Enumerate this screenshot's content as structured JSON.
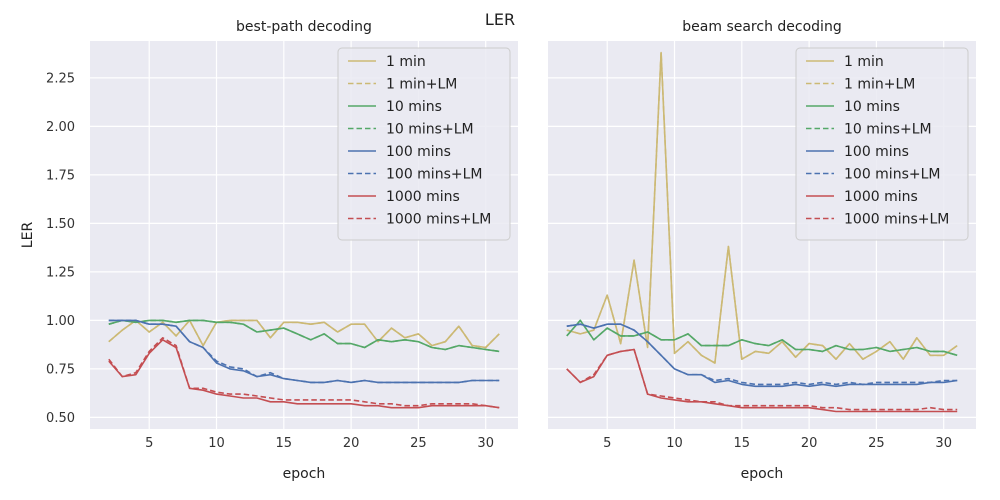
{
  "figure": {
    "suptitle": "LER",
    "ylabel": "LER",
    "colors": {
      "background": "#eaeaf2",
      "grid": "#ffffff",
      "1 min": "#ccb974",
      "10 mins": "#55a868",
      "100 mins": "#4c72b0",
      "1000 mins": "#c44e52"
    }
  },
  "chart_data": [
    {
      "type": "line",
      "title": "best-path decoding",
      "xlabel": "epoch",
      "ylabel": "LER",
      "xlim": [
        0.6,
        32.4
      ],
      "ylim": [
        0.44,
        2.44
      ],
      "xticks": [
        5,
        10,
        15,
        20,
        25,
        30
      ],
      "yticks": [
        0.5,
        0.75,
        1.0,
        1.25,
        1.5,
        1.75,
        2.0,
        2.25
      ],
      "ytick_labels": [
        "0.50",
        "0.75",
        "1.00",
        "1.25",
        "1.50",
        "1.75",
        "2.00",
        "2.25"
      ],
      "grid": true,
      "legend_position": "upper right",
      "x": [
        2,
        3,
        4,
        5,
        6,
        7,
        8,
        9,
        10,
        11,
        12,
        13,
        14,
        15,
        16,
        17,
        18,
        19,
        20,
        21,
        22,
        23,
        24,
        25,
        26,
        27,
        28,
        29,
        30,
        31
      ],
      "series": [
        {
          "name": "1 min",
          "color": "#ccb974",
          "dash": "solid",
          "values": [
            0.89,
            0.95,
            1.0,
            0.94,
            0.99,
            0.92,
            1.0,
            0.87,
            0.99,
            1.0,
            1.0,
            1.0,
            0.91,
            0.99,
            0.99,
            0.98,
            0.99,
            0.94,
            0.98,
            0.98,
            0.89,
            0.96,
            0.91,
            0.93,
            0.87,
            0.89,
            0.97,
            0.87,
            0.86,
            0.93
          ]
        },
        {
          "name": "1 min+LM",
          "color": "#ccb974",
          "dash": "dashed",
          "values": [
            0.89,
            0.95,
            1.0,
            0.94,
            0.99,
            0.92,
            1.0,
            0.87,
            0.99,
            1.0,
            1.0,
            1.0,
            0.91,
            0.99,
            0.99,
            0.98,
            0.99,
            0.94,
            0.98,
            0.98,
            0.89,
            0.96,
            0.91,
            0.93,
            0.87,
            0.89,
            0.97,
            0.87,
            0.86,
            0.93
          ]
        },
        {
          "name": "10 mins",
          "color": "#55a868",
          "dash": "solid",
          "values": [
            0.98,
            1.0,
            0.99,
            1.0,
            1.0,
            0.99,
            1.0,
            1.0,
            0.99,
            0.99,
            0.98,
            0.94,
            0.95,
            0.96,
            0.93,
            0.9,
            0.93,
            0.88,
            0.88,
            0.86,
            0.9,
            0.89,
            0.9,
            0.89,
            0.86,
            0.85,
            0.87,
            0.86,
            0.85,
            0.84
          ]
        },
        {
          "name": "10 mins+LM",
          "color": "#55a868",
          "dash": "dashed",
          "values": [
            0.98,
            1.0,
            0.99,
            1.0,
            1.0,
            0.99,
            1.0,
            1.0,
            0.99,
            0.99,
            0.98,
            0.94,
            0.95,
            0.96,
            0.93,
            0.9,
            0.93,
            0.88,
            0.88,
            0.86,
            0.9,
            0.89,
            0.9,
            0.89,
            0.86,
            0.85,
            0.87,
            0.86,
            0.85,
            0.84
          ]
        },
        {
          "name": "100 mins",
          "color": "#4c72b0",
          "dash": "solid",
          "values": [
            1.0,
            1.0,
            1.0,
            0.98,
            0.98,
            0.97,
            0.89,
            0.86,
            0.78,
            0.75,
            0.74,
            0.71,
            0.72,
            0.7,
            0.69,
            0.68,
            0.68,
            0.69,
            0.68,
            0.69,
            0.68,
            0.68,
            0.68,
            0.68,
            0.68,
            0.68,
            0.68,
            0.69,
            0.69,
            0.69
          ]
        },
        {
          "name": "100 mins+LM",
          "color": "#4c72b0",
          "dash": "dashed",
          "values": [
            1.0,
            1.0,
            1.0,
            0.98,
            0.98,
            0.97,
            0.89,
            0.86,
            0.79,
            0.76,
            0.75,
            0.71,
            0.73,
            0.7,
            0.69,
            0.68,
            0.68,
            0.69,
            0.68,
            0.69,
            0.68,
            0.68,
            0.68,
            0.68,
            0.68,
            0.68,
            0.68,
            0.69,
            0.69,
            0.69
          ]
        },
        {
          "name": "1000 mins",
          "color": "#c44e52",
          "dash": "solid",
          "values": [
            0.79,
            0.71,
            0.72,
            0.83,
            0.9,
            0.86,
            0.65,
            0.64,
            0.62,
            0.61,
            0.6,
            0.6,
            0.58,
            0.58,
            0.57,
            0.57,
            0.57,
            0.57,
            0.57,
            0.56,
            0.56,
            0.55,
            0.55,
            0.55,
            0.56,
            0.56,
            0.56,
            0.56,
            0.56,
            0.55
          ]
        },
        {
          "name": "1000 mins+LM",
          "color": "#c44e52",
          "dash": "dashed",
          "values": [
            0.8,
            0.71,
            0.73,
            0.84,
            0.91,
            0.87,
            0.65,
            0.65,
            0.63,
            0.62,
            0.62,
            0.61,
            0.6,
            0.59,
            0.59,
            0.59,
            0.59,
            0.59,
            0.59,
            0.58,
            0.57,
            0.57,
            0.56,
            0.56,
            0.57,
            0.57,
            0.57,
            0.57,
            0.56,
            0.55
          ]
        }
      ]
    },
    {
      "type": "line",
      "title": "beam search decoding",
      "xlabel": "epoch",
      "xlim": [
        0.6,
        32.4
      ],
      "ylim": [
        0.44,
        2.44
      ],
      "xticks": [
        5,
        10,
        15,
        20,
        25,
        30
      ],
      "grid": true,
      "legend_position": "upper right",
      "x": [
        2,
        3,
        4,
        5,
        6,
        7,
        8,
        9,
        10,
        11,
        12,
        13,
        14,
        15,
        16,
        17,
        18,
        19,
        20,
        21,
        22,
        23,
        24,
        25,
        26,
        27,
        28,
        29,
        30,
        31
      ],
      "series": [
        {
          "name": "1 min",
          "color": "#ccb974",
          "dash": "solid",
          "values": [
            0.95,
            0.93,
            0.95,
            1.13,
            0.88,
            1.31,
            0.86,
            2.38,
            0.83,
            0.89,
            0.82,
            0.78,
            1.38,
            0.8,
            0.84,
            0.83,
            0.89,
            0.81,
            0.88,
            0.87,
            0.8,
            0.88,
            0.8,
            0.84,
            0.89,
            0.8,
            0.91,
            0.82,
            0.82,
            0.87
          ]
        },
        {
          "name": "1 min+LM",
          "color": "#ccb974",
          "dash": "dashed",
          "values": [
            0.95,
            0.93,
            0.95,
            1.13,
            0.88,
            1.31,
            0.86,
            2.38,
            0.83,
            0.89,
            0.82,
            0.78,
            1.38,
            0.8,
            0.84,
            0.83,
            0.89,
            0.81,
            0.88,
            0.87,
            0.8,
            0.88,
            0.8,
            0.84,
            0.89,
            0.8,
            0.91,
            0.82,
            0.82,
            0.87
          ]
        },
        {
          "name": "10 mins",
          "color": "#55a868",
          "dash": "solid",
          "values": [
            0.92,
            1.0,
            0.9,
            0.96,
            0.92,
            0.92,
            0.94,
            0.9,
            0.9,
            0.93,
            0.87,
            0.87,
            0.87,
            0.9,
            0.88,
            0.87,
            0.9,
            0.85,
            0.85,
            0.84,
            0.87,
            0.85,
            0.85,
            0.86,
            0.84,
            0.85,
            0.86,
            0.84,
            0.84,
            0.82
          ]
        },
        {
          "name": "10 mins+LM",
          "color": "#55a868",
          "dash": "dashed",
          "values": [
            0.92,
            1.0,
            0.9,
            0.96,
            0.92,
            0.92,
            0.94,
            0.9,
            0.9,
            0.93,
            0.87,
            0.87,
            0.87,
            0.9,
            0.88,
            0.87,
            0.9,
            0.85,
            0.85,
            0.84,
            0.87,
            0.85,
            0.85,
            0.86,
            0.84,
            0.85,
            0.86,
            0.84,
            0.84,
            0.82
          ]
        },
        {
          "name": "100 mins",
          "color": "#4c72b0",
          "dash": "solid",
          "values": [
            0.97,
            0.98,
            0.96,
            0.98,
            0.98,
            0.95,
            0.89,
            0.82,
            0.75,
            0.72,
            0.72,
            0.68,
            0.69,
            0.67,
            0.66,
            0.66,
            0.66,
            0.67,
            0.66,
            0.67,
            0.66,
            0.67,
            0.67,
            0.67,
            0.67,
            0.67,
            0.67,
            0.68,
            0.68,
            0.69
          ]
        },
        {
          "name": "100 mins+LM",
          "color": "#4c72b0",
          "dash": "dashed",
          "values": [
            0.97,
            0.98,
            0.96,
            0.98,
            0.98,
            0.95,
            0.89,
            0.82,
            0.75,
            0.72,
            0.72,
            0.69,
            0.7,
            0.68,
            0.67,
            0.67,
            0.67,
            0.68,
            0.67,
            0.68,
            0.67,
            0.68,
            0.67,
            0.68,
            0.68,
            0.68,
            0.68,
            0.68,
            0.69,
            0.69
          ]
        },
        {
          "name": "1000 mins",
          "color": "#c44e52",
          "dash": "solid",
          "values": [
            0.75,
            0.68,
            0.71,
            0.82,
            0.84,
            0.85,
            0.62,
            0.6,
            0.59,
            0.58,
            0.58,
            0.57,
            0.56,
            0.55,
            0.55,
            0.55,
            0.55,
            0.55,
            0.55,
            0.54,
            0.53,
            0.53,
            0.53,
            0.53,
            0.53,
            0.53,
            0.53,
            0.53,
            0.53,
            0.53
          ]
        },
        {
          "name": "1000 mins+LM",
          "color": "#c44e52",
          "dash": "dashed",
          "values": [
            0.75,
            0.68,
            0.72,
            0.82,
            0.84,
            0.85,
            0.62,
            0.61,
            0.6,
            0.59,
            0.58,
            0.58,
            0.56,
            0.56,
            0.56,
            0.56,
            0.56,
            0.56,
            0.56,
            0.55,
            0.55,
            0.54,
            0.54,
            0.54,
            0.54,
            0.54,
            0.54,
            0.55,
            0.54,
            0.54
          ]
        }
      ]
    }
  ]
}
